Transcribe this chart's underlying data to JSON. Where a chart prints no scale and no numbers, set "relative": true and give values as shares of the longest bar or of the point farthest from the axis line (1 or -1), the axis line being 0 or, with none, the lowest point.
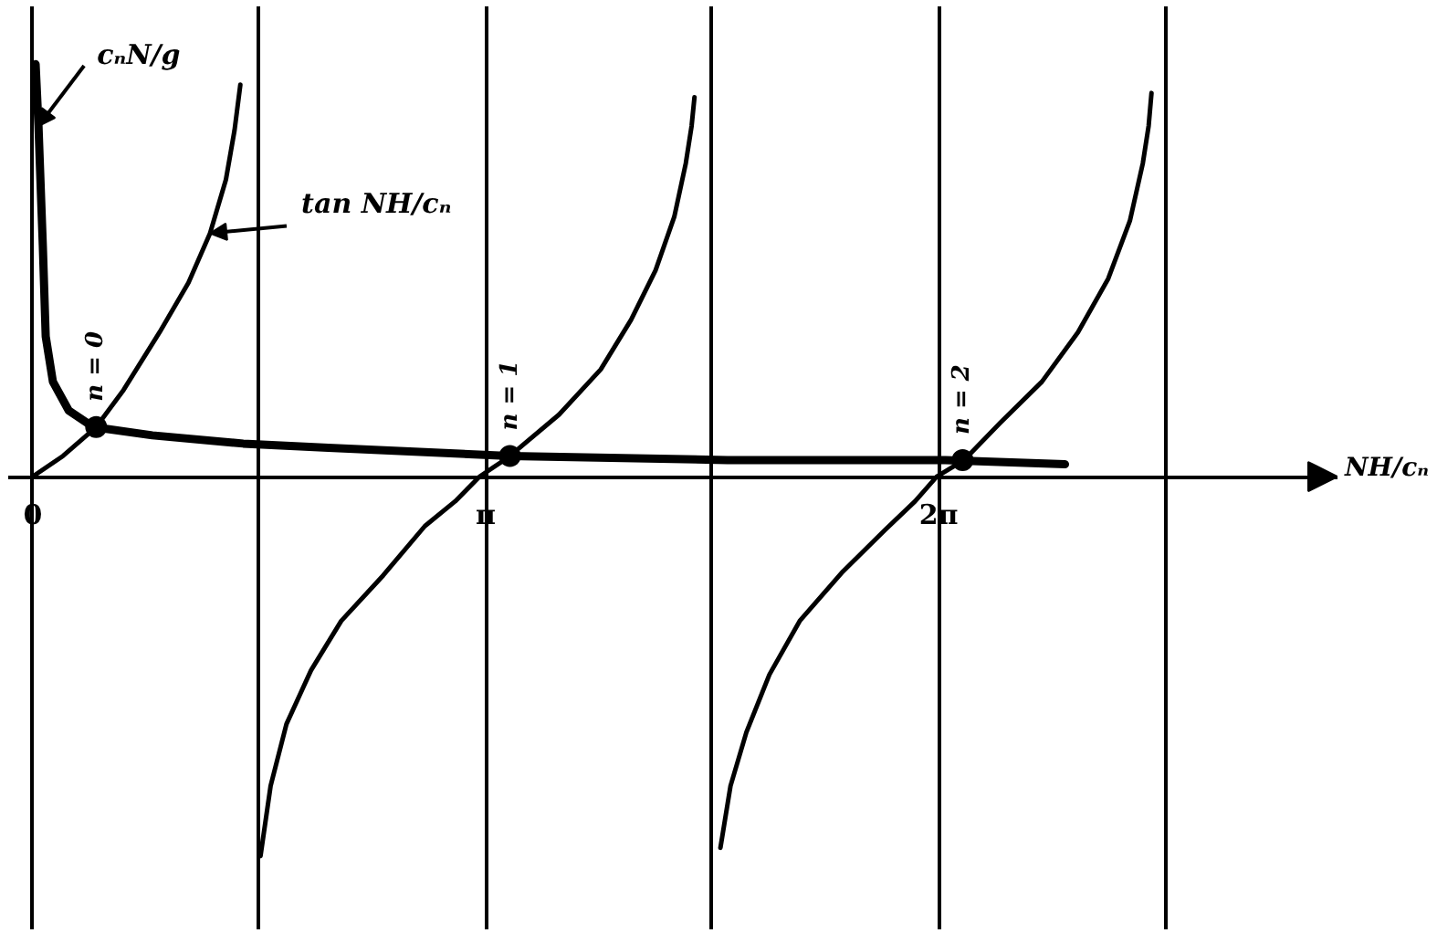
{
  "chart_data": {
    "type": "line",
    "relative": true,
    "xlabel": "NH/cₙ",
    "xlim": [
      -0.17,
      9.05
    ],
    "xticks": [
      0,
      {
        "value": 1.571,
        "label": null
      },
      {
        "value": 3.142,
        "label": "π"
      },
      {
        "value": 4.712,
        "label": null
      },
      {
        "value": 6.283,
        "label": "2π"
      },
      {
        "value": 7.854,
        "label": null
      }
    ],
    "grid": "x",
    "series": [
      {
        "name": "cₙN/g",
        "color": "#000000",
        "x": [
          0.02,
          0.04,
          0.07,
          0.09,
          0.14,
          0.25,
          0.42,
          0.83,
          1.46,
          2.05,
          3.31,
          4.82,
          6.33,
          7.16
        ],
        "values": [
          1.0,
          0.85,
          0.56,
          0.34,
          0.23,
          0.16,
          0.12,
          0.1,
          0.08,
          0.07,
          0.05,
          0.04,
          0.04,
          0.03
        ]
      },
      {
        "name": "tan NH/cₙ",
        "color": "#000000",
        "x": [
          0.0,
          0.21,
          0.44,
          0.63,
          0.88,
          1.08,
          1.23,
          1.34,
          1.4,
          1.44,
          1.5,
          1.58,
          1.65,
          1.76,
          1.93,
          2.14,
          2.43,
          2.72,
          2.93,
          3.1,
          3.27,
          3.31,
          3.65,
          3.94,
          4.15,
          4.32,
          4.45,
          4.53,
          4.57,
          4.59,
          4.7,
          4.77,
          4.84,
          4.95,
          5.11,
          5.32,
          5.62,
          5.91,
          6.12,
          6.27,
          6.46,
          6.71,
          7.0,
          7.25,
          7.46,
          7.61,
          7.7,
          7.74,
          7.76
        ],
        "values": [
          0.0,
          0.05,
          0.12,
          0.21,
          0.35,
          0.47,
          0.59,
          0.72,
          0.84,
          0.95,
          null,
          -0.92,
          -0.75,
          -0.6,
          -0.47,
          -0.35,
          -0.24,
          -0.12,
          -0.06,
          0.0,
          0.04,
          0.05,
          0.15,
          0.26,
          0.38,
          0.5,
          0.63,
          0.76,
          0.85,
          0.92,
          null,
          -0.9,
          -0.75,
          -0.62,
          -0.48,
          -0.35,
          -0.23,
          -0.13,
          -0.06,
          0.0,
          0.04,
          0.13,
          0.23,
          0.35,
          0.48,
          0.62,
          0.76,
          0.85,
          0.93
        ]
      },
      {
        "type": "scatter",
        "marker": "circle",
        "color": "#000000",
        "x": [
          0.44,
          3.31,
          6.45
        ],
        "values": [
          0.12,
          0.05,
          0.04
        ]
      }
    ],
    "annotations": [
      {
        "text": "n = 0",
        "x": 0.44,
        "y": 0.12
      },
      {
        "text": "n = 1",
        "x": 3.31,
        "y": 0.05
      },
      {
        "text": "n = 2",
        "x": 6.45,
        "y": 0.04
      }
    ]
  }
}
